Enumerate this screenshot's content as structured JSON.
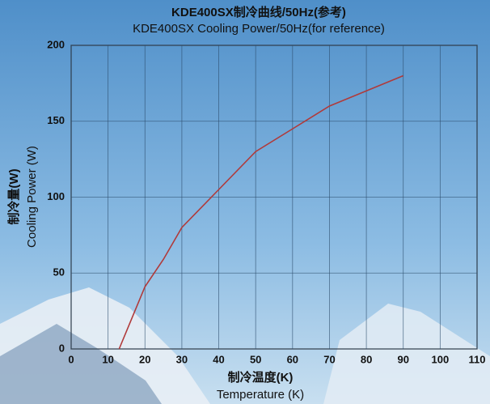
{
  "chart_data": {
    "type": "line",
    "title": "KDE400SX制冷曲线/50Hz(参考)",
    "subtitle": "KDE400SX Cooling Power/50Hz(for reference)",
    "y_label": "制冷量(W)",
    "y_label_en": "Cooling Power (W)",
    "x_label": "制冷温度(K)",
    "x_label_en": "Temperature (K)",
    "x": [
      13,
      20,
      25,
      30,
      40,
      50,
      60,
      70,
      80,
      90
    ],
    "series": [
      {
        "color": "#b03a3a",
        "values": [
          0,
          41,
          59,
          80,
          105,
          130,
          145,
          160,
          170,
          180
        ]
      }
    ],
    "xlim": [
      0,
      110
    ],
    "xticks": [
      0,
      10,
      20,
      30,
      40,
      50,
      60,
      70,
      80,
      90,
      100,
      110
    ],
    "ylim": [
      0,
      200
    ],
    "yticks": [
      0,
      50,
      100,
      150,
      200
    ],
    "grid": true
  }
}
